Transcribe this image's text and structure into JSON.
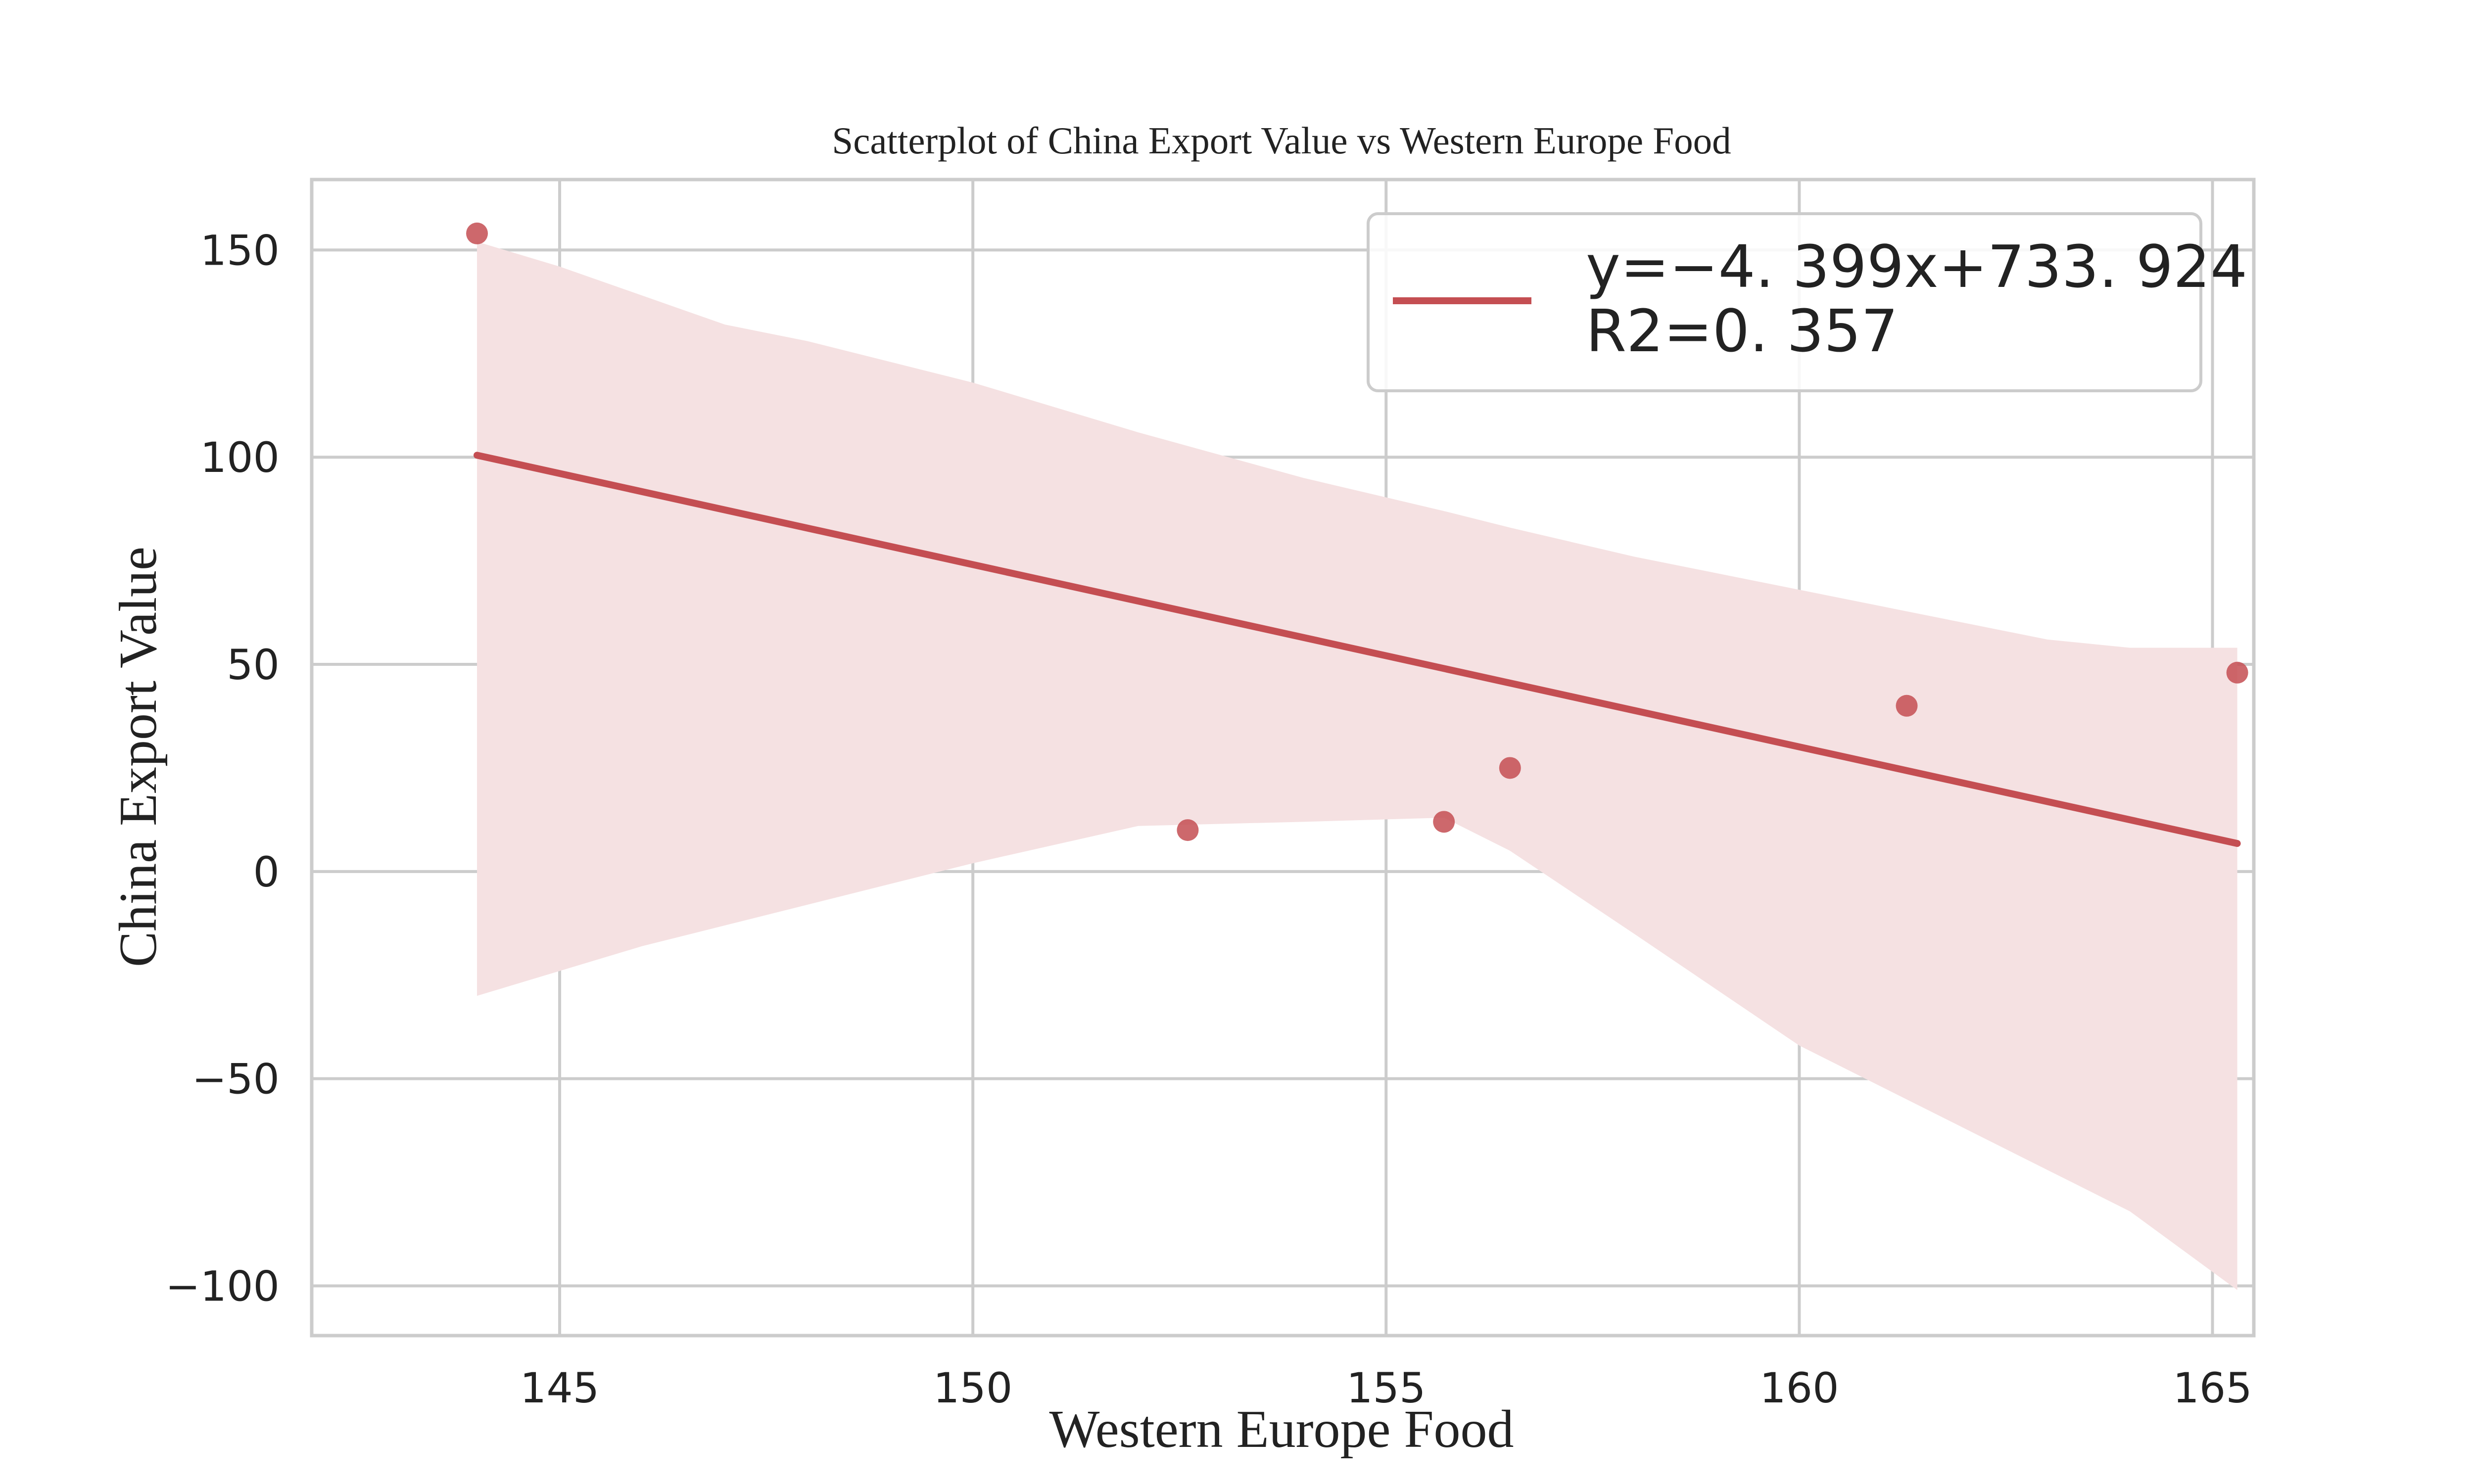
{
  "chart_data": {
    "type": "scatter",
    "title": "Scatterplot of China Export Value vs Western Europe Food",
    "xlabel": "Western Europe Food",
    "ylabel": "China Export Value",
    "xlim": [
      142,
      165.5
    ],
    "ylim": [
      -112,
      167
    ],
    "xticks": [
      145,
      150,
      155,
      160,
      165
    ],
    "yticks": [
      -100,
      -50,
      0,
      50,
      100,
      150
    ],
    "xtick_labels": [
      "145",
      "150",
      "155",
      "160",
      "165"
    ],
    "ytick_labels": [
      "−100",
      "−50",
      "0",
      "50",
      "100",
      "150"
    ],
    "grid": true,
    "legend_position": "top-right",
    "legend": [
      "y=−4. 399x+733. 924",
      "R2=0. 357"
    ],
    "colors": {
      "points": "#c44e52",
      "line": "#c44e52",
      "band": "#f5e1e2",
      "grid": "#cccccc",
      "frame": "#cccccc"
    },
    "points": [
      {
        "x": 144.0,
        "y": 154
      },
      {
        "x": 152.6,
        "y": 10
      },
      {
        "x": 155.7,
        "y": 12
      },
      {
        "x": 156.5,
        "y": 25
      },
      {
        "x": 161.3,
        "y": 40
      },
      {
        "x": 165.3,
        "y": 48
      }
    ],
    "regression": {
      "slope": -4.399,
      "intercept": 733.924,
      "x_range": [
        144.0,
        165.3
      ]
    },
    "confidence_band": {
      "x": [
        144.0,
        145.0,
        146.0,
        147.0,
        148.0,
        150.0,
        152.0,
        154.0,
        155.7,
        156.5,
        158.0,
        160.0,
        162.0,
        163.0,
        164.0,
        165.3
      ],
      "upper": [
        152,
        146,
        139,
        132,
        128,
        118,
        106,
        95,
        87,
        83,
        76,
        68,
        60,
        56,
        54,
        54
      ],
      "lower": [
        -30,
        -24,
        -18,
        -13,
        -8,
        2,
        11,
        12,
        13,
        5,
        -15,
        -42,
        -62,
        -72,
        -82,
        -101
      ]
    }
  }
}
